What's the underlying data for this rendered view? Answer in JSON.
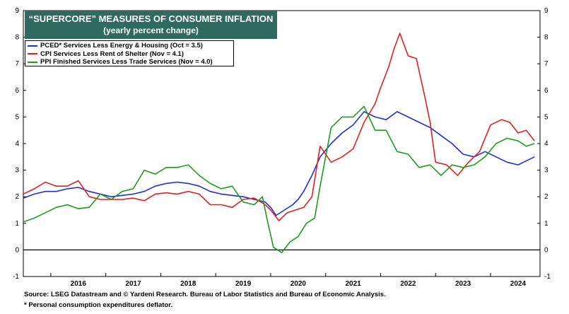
{
  "title_line1": "“SUPERCORE” MEASURES OF CONSUMER INFLATION",
  "title_line2": "(yearly percent change)",
  "legend": [
    {
      "label": "PCED* Services Less Energy & Housing  (Oct = 3.5)",
      "color": "#1f2fd6"
    },
    {
      "label": "CPI Services Less Rent of Shelter  (Nov = 4.1)",
      "color": "#e02020"
    },
    {
      "label": "PPI Finished Services Less Trade Services (Nov = 4.0)",
      "color": "#1f9a1f"
    }
  ],
  "source": "Source: LSEG Datastream and © Yardeni Research. Bureau of Labor Statistics and Bureau of Economic Analysis.",
  "footnote": "* Personal consumption expenditures deflator.",
  "chart_data": {
    "type": "line",
    "xlim": [
      2015.5,
      2024.9
    ],
    "ylim": [
      -1,
      9
    ],
    "yticks": [
      -1,
      0,
      1,
      2,
      3,
      4,
      5,
      6,
      7,
      8,
      9
    ],
    "ytick_labels": [
      "-1",
      "0",
      "1",
      "2",
      "3",
      "4",
      "5",
      "6",
      "7",
      "8",
      "9"
    ],
    "xtick_labels": [
      "2016",
      "2017",
      "2018",
      "2019",
      "2020",
      "2021",
      "2022",
      "2023",
      "2024"
    ],
    "grid": false,
    "reference_line": 0,
    "series": [
      {
        "name": "PCED* Services Less Energy & Housing  (Oct = 3.5)",
        "color": "#1f2fd6",
        "x": [
          2015.5,
          2015.7,
          2015.9,
          2016.1,
          2016.3,
          2016.5,
          2016.7,
          2016.9,
          2017.1,
          2017.3,
          2017.5,
          2017.7,
          2017.9,
          2018.1,
          2018.3,
          2018.5,
          2018.7,
          2018.9,
          2019.1,
          2019.3,
          2019.5,
          2019.7,
          2019.9,
          2020.0,
          2020.1,
          2020.25,
          2020.4,
          2020.5,
          2020.6,
          2020.75,
          2020.9,
          2021.1,
          2021.3,
          2021.5,
          2021.7,
          2021.9,
          2022.1,
          2022.3,
          2022.5,
          2022.7,
          2022.9,
          2023.1,
          2023.3,
          2023.5,
          2023.7,
          2023.9,
          2024.1,
          2024.3,
          2024.5,
          2024.6,
          2024.8
        ],
        "y": [
          1.95,
          2.1,
          2.2,
          2.2,
          2.3,
          2.35,
          2.2,
          2.1,
          2.0,
          2.05,
          2.1,
          2.2,
          2.4,
          2.5,
          2.55,
          2.5,
          2.4,
          2.2,
          2.1,
          2.05,
          2.0,
          1.9,
          1.8,
          1.6,
          1.3,
          1.5,
          1.7,
          1.9,
          2.2,
          2.8,
          3.5,
          4.0,
          4.4,
          4.7,
          5.2,
          5.0,
          4.9,
          5.2,
          5.0,
          4.8,
          4.6,
          4.3,
          4.0,
          3.6,
          3.5,
          3.7,
          3.5,
          3.3,
          3.2,
          3.3,
          3.5
        ]
      },
      {
        "name": "CPI Services Less Rent of Shelter  (Nov = 4.1)",
        "color": "#e02020",
        "x": [
          2015.5,
          2015.7,
          2015.9,
          2016.1,
          2016.3,
          2016.5,
          2016.7,
          2016.9,
          2017.1,
          2017.3,
          2017.5,
          2017.7,
          2017.9,
          2018.1,
          2018.3,
          2018.5,
          2018.7,
          2018.9,
          2019.1,
          2019.3,
          2019.5,
          2019.7,
          2019.9,
          2020.0,
          2020.15,
          2020.3,
          2020.45,
          2020.6,
          2020.75,
          2020.9,
          2021.1,
          2021.3,
          2021.5,
          2021.7,
          2021.9,
          2022.0,
          2022.15,
          2022.25,
          2022.35,
          2022.5,
          2022.65,
          2022.8,
          2022.9,
          2023.0,
          2023.2,
          2023.4,
          2023.6,
          2023.8,
          2024.0,
          2024.2,
          2024.35,
          2024.5,
          2024.65,
          2024.8
        ],
        "y": [
          2.1,
          2.3,
          2.55,
          2.4,
          2.4,
          2.6,
          2.0,
          1.9,
          1.9,
          1.9,
          1.95,
          1.85,
          2.1,
          2.15,
          2.1,
          2.2,
          2.1,
          1.7,
          1.7,
          1.6,
          1.9,
          1.95,
          1.7,
          1.5,
          1.1,
          1.4,
          1.5,
          1.6,
          2.0,
          3.9,
          3.3,
          3.5,
          3.8,
          4.8,
          5.5,
          6.1,
          6.9,
          7.6,
          8.15,
          7.3,
          7.2,
          5.8,
          4.8,
          3.3,
          3.2,
          2.8,
          3.3,
          3.7,
          4.7,
          4.9,
          4.8,
          4.4,
          4.5,
          4.1
        ]
      },
      {
        "name": "PPI Finished Services Less Trade Services (Nov = 4.0)",
        "color": "#1f9a1f",
        "x": [
          2015.5,
          2015.7,
          2015.9,
          2016.1,
          2016.3,
          2016.5,
          2016.7,
          2016.9,
          2017.1,
          2017.3,
          2017.5,
          2017.7,
          2017.9,
          2018.1,
          2018.3,
          2018.5,
          2018.7,
          2018.9,
          2019.1,
          2019.3,
          2019.5,
          2019.7,
          2019.85,
          2019.95,
          2020.05,
          2020.2,
          2020.35,
          2020.5,
          2020.65,
          2020.8,
          2020.9,
          2021.1,
          2021.3,
          2021.5,
          2021.7,
          2021.9,
          2022.1,
          2022.3,
          2022.5,
          2022.7,
          2022.9,
          2023.1,
          2023.3,
          2023.5,
          2023.7,
          2023.9,
          2024.1,
          2024.3,
          2024.5,
          2024.65,
          2024.8
        ],
        "y": [
          1.05,
          1.2,
          1.4,
          1.6,
          1.7,
          1.55,
          1.6,
          2.1,
          1.9,
          2.2,
          2.3,
          3.0,
          2.85,
          3.1,
          3.1,
          3.2,
          2.8,
          2.5,
          2.3,
          2.4,
          1.8,
          1.7,
          2.0,
          1.0,
          0.1,
          -0.1,
          0.3,
          0.5,
          1.0,
          1.2,
          2.4,
          4.6,
          5.0,
          5.0,
          5.4,
          4.5,
          4.5,
          3.7,
          3.6,
          3.1,
          3.2,
          2.8,
          3.2,
          3.1,
          3.2,
          3.5,
          4.0,
          4.2,
          4.1,
          3.9,
          4.0
        ]
      }
    ]
  }
}
